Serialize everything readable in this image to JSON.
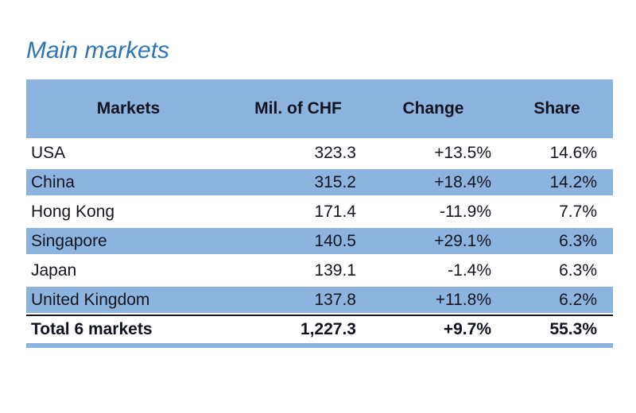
{
  "title": "Main markets",
  "table": {
    "columns": [
      "Markets",
      "Mil. of CHF",
      "Change",
      "Share"
    ],
    "rows": [
      {
        "market": "USA",
        "chf": "323.3",
        "change": "+13.5%",
        "share": "14.6%"
      },
      {
        "market": "China",
        "chf": "315.2",
        "change": "+18.4%",
        "share": "14.2%"
      },
      {
        "market": "Hong Kong",
        "chf": "171.4",
        "change": "-11.9%",
        "share": "7.7%"
      },
      {
        "market": "Singapore",
        "chf": "140.5",
        "change": "+29.1%",
        "share": "6.3%"
      },
      {
        "market": "Japan",
        "chf": "139.1",
        "change": "-1.4%",
        "share": "6.3%"
      },
      {
        "market": "United Kingdom",
        "chf": "137.8",
        "change": "+11.8%",
        "share": "6.2%"
      }
    ],
    "total": {
      "market": "Total 6 markets",
      "chf": "1,227.3",
      "change": "+9.7%",
      "share": "55.3%"
    }
  },
  "chart_data": {
    "type": "table",
    "title": "Main markets",
    "columns": [
      "Markets",
      "Mil. of CHF",
      "Change",
      "Share"
    ],
    "rows": [
      [
        "USA",
        323.3,
        "+13.5%",
        "14.6%"
      ],
      [
        "China",
        315.2,
        "+18.4%",
        "14.2%"
      ],
      [
        "Hong Kong",
        171.4,
        "-11.9%",
        "7.7%"
      ],
      [
        "Singapore",
        140.5,
        "+29.1%",
        "6.3%"
      ],
      [
        "Japan",
        139.1,
        "-1.4%",
        "6.3%"
      ],
      [
        "United Kingdom",
        137.8,
        "+11.8%",
        "6.2%"
      ]
    ],
    "total_row": [
      "Total 6 markets",
      1227.3,
      "+9.7%",
      "55.3%"
    ],
    "layout_hints": {
      "striped_rows": "alternating white / light blue starting white",
      "header_fill": "#8db3df",
      "total_separator": "black top border, blue bottom bar"
    }
  },
  "colors": {
    "accent_blue": "#8db3df",
    "title_blue": "#2e75b6",
    "text_dark": "#14161f"
  }
}
